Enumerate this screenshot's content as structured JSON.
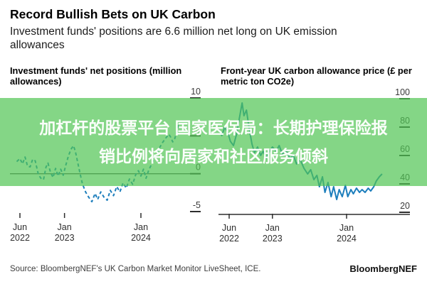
{
  "header": {
    "title": "Record Bullish Bets on UK Carbon",
    "subtitle": "Investment funds' positions are 6.6 million net long on UK emission allowances"
  },
  "banner": {
    "line1": "加杠杆的股票平台 国家医保局：长期护理保险报",
    "line2": "销比例将向居家和社区服务倾斜"
  },
  "footer": {
    "source": "Source: BloombergNEF's UK Carbon Market Monitor LiveSheet, ICE.",
    "logo": "BloombergNEF"
  },
  "colors": {
    "line_blue": "#1d7ebc",
    "banner_overlay": "rgba(80,197,82,0.70)",
    "axis_ink": "#2e2e2e",
    "tick_label": "#3a3a3a",
    "zero_line": "#555555"
  },
  "chart_data": [
    {
      "type": "line",
      "title": "Investment funds' net positions (million allowances)",
      "ylabel": "million allowances",
      "ylim": [
        -5,
        10
      ],
      "yticks": [
        10,
        5,
        0,
        -5
      ],
      "x_epoch_note": "months after Jun 2022",
      "x_tick_months": [
        0,
        7,
        19
      ],
      "x_tick_labels": [
        "Jun 2022",
        "Jan 2023",
        "Jan 2024"
      ],
      "zero_line": true,
      "axis_line": false,
      "grid": false,
      "legend": null,
      "series": [
        {
          "name": "Investment funds' net positions",
          "dash": true,
          "points": [
            [
              -0.5,
              1.6
            ],
            [
              0,
              2.0
            ],
            [
              0.4,
              1.3
            ],
            [
              0.8,
              2.2
            ],
            [
              1.2,
              1.0
            ],
            [
              1.6,
              0.9
            ],
            [
              2.0,
              1.9
            ],
            [
              2.4,
              1.7
            ],
            [
              2.9,
              -0.1
            ],
            [
              3.3,
              -0.6
            ],
            [
              3.7,
              -0.8
            ],
            [
              4.1,
              0.9
            ],
            [
              4.4,
              1.4
            ],
            [
              4.8,
              0.2
            ],
            [
              5.2,
              -0.5
            ],
            [
              5.6,
              0.7
            ],
            [
              6.0,
              -0.3
            ],
            [
              6.4,
              0.6
            ],
            [
              6.8,
              -0.2
            ],
            [
              7.2,
              1.1
            ],
            [
              7.6,
              2.3
            ],
            [
              8.0,
              3.2
            ],
            [
              8.4,
              3.7
            ],
            [
              8.7,
              3.0
            ],
            [
              9.0,
              1.8
            ],
            [
              9.4,
              0.2
            ],
            [
              9.8,
              -1.3
            ],
            [
              10.3,
              -2.4
            ],
            [
              10.8,
              -3.1
            ],
            [
              11.3,
              -3.7
            ],
            [
              11.8,
              -2.6
            ],
            [
              12.2,
              -3.4
            ],
            [
              12.7,
              -2.4
            ],
            [
              13.2,
              -3.1
            ],
            [
              13.7,
              -3.5
            ],
            [
              14.2,
              -2.2
            ],
            [
              14.7,
              -2.9
            ],
            [
              15.2,
              -1.7
            ],
            [
              15.7,
              -2.4
            ],
            [
              16.2,
              -1.2
            ],
            [
              16.7,
              -1.9
            ],
            [
              17.2,
              -0.7
            ],
            [
              17.7,
              -1.4
            ],
            [
              18.2,
              -0.1
            ],
            [
              18.6,
              0.4
            ],
            [
              19.0,
              -0.3
            ],
            [
              19.4,
              0.6
            ],
            [
              19.8,
              -0.6
            ],
            [
              20.2,
              0.4
            ],
            [
              20.7,
              1.3
            ],
            [
              21.2,
              2.3
            ],
            [
              21.8,
              3.2
            ],
            [
              22.3,
              4.0
            ],
            [
              22.9,
              4.7
            ],
            [
              23.4,
              5.2
            ],
            [
              23.7,
              4.8
            ],
            [
              24.0,
              4.2
            ],
            [
              24.3,
              4.6
            ],
            [
              24.6,
              5.4
            ],
            [
              24.9,
              6.6
            ]
          ]
        }
      ]
    },
    {
      "type": "line",
      "title": "Front-year UK carbon allowance price (£ per metric ton CO2e)",
      "ylabel": "£ per metric ton CO2e",
      "ylim": [
        20,
        100
      ],
      "yticks": [
        100,
        80,
        60,
        40,
        20
      ],
      "x_epoch_note": "months after Jun 2022",
      "x_tick_months": [
        0,
        7,
        19
      ],
      "x_tick_labels": [
        "Jun 2022",
        "Jan 2023",
        "Jan 2024"
      ],
      "zero_line": false,
      "axis_line": true,
      "grid": false,
      "legend": null,
      "series": [
        {
          "name": "Front-year UK carbon allowance price",
          "dash": false,
          "points": [
            [
              -1.6,
              78
            ],
            [
              -1.2,
              74
            ],
            [
              -0.7,
              80
            ],
            [
              -0.2,
              76
            ],
            [
              0.2,
              70
            ],
            [
              0.7,
              67
            ],
            [
              1.2,
              75
            ],
            [
              1.6,
              85
            ],
            [
              2.1,
              97
            ],
            [
              2.4,
              88
            ],
            [
              2.8,
              92
            ],
            [
              3.2,
              80
            ],
            [
              3.7,
              68
            ],
            [
              4.1,
              62
            ],
            [
              4.6,
              66
            ],
            [
              5.1,
              60
            ],
            [
              5.5,
              63
            ],
            [
              6.0,
              58
            ],
            [
              6.4,
              62
            ],
            [
              7.0,
              66
            ],
            [
              7.6,
              63
            ],
            [
              8.1,
              67
            ],
            [
              8.6,
              61
            ],
            [
              9.2,
              64
            ],
            [
              9.8,
              58
            ],
            [
              10.4,
              60
            ],
            [
              10.9,
              54
            ],
            [
              11.5,
              57
            ],
            [
              12.1,
              51
            ],
            [
              12.7,
              47
            ],
            [
              13.2,
              50
            ],
            [
              13.7,
              43
            ],
            [
              14.2,
              46
            ],
            [
              14.6,
              38
            ],
            [
              15.1,
              45
            ],
            [
              15.5,
              34
            ],
            [
              16.0,
              41
            ],
            [
              16.5,
              31
            ],
            [
              16.9,
              38
            ],
            [
              17.4,
              29
            ],
            [
              17.8,
              36
            ],
            [
              18.3,
              31
            ],
            [
              18.8,
              39
            ],
            [
              19.2,
              31
            ],
            [
              19.7,
              36
            ],
            [
              20.1,
              33
            ],
            [
              20.6,
              37
            ],
            [
              21.1,
              34
            ],
            [
              21.5,
              36
            ],
            [
              22.0,
              34
            ],
            [
              22.5,
              37
            ],
            [
              22.9,
              35
            ],
            [
              23.4,
              38
            ],
            [
              23.8,
              42
            ],
            [
              24.3,
              45
            ],
            [
              24.75,
              47
            ]
          ]
        }
      ]
    }
  ]
}
